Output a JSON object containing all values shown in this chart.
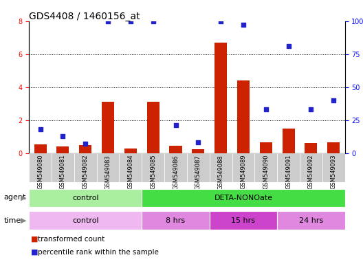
{
  "title": "GDS4408 / 1460156_at",
  "samples": [
    "GSM549080",
    "GSM549081",
    "GSM549082",
    "GSM549083",
    "GSM549084",
    "GSM549085",
    "GSM549086",
    "GSM549087",
    "GSM549088",
    "GSM549089",
    "GSM549090",
    "GSM549091",
    "GSM549092",
    "GSM549093"
  ],
  "transformed_count": [
    0.55,
    0.4,
    0.5,
    3.1,
    0.3,
    3.1,
    0.45,
    0.25,
    6.7,
    4.4,
    0.65,
    1.5,
    0.6,
    0.65
  ],
  "percentile_rank_pct": [
    18,
    13,
    7,
    100,
    100,
    100,
    21,
    8,
    100,
    97,
    33,
    81,
    33,
    40
  ],
  "bar_color": "#cc2200",
  "dot_color": "#2222cc",
  "ylim_left": [
    0,
    8
  ],
  "ylim_right": [
    0,
    100
  ],
  "yticks_left": [
    0,
    2,
    4,
    6,
    8
  ],
  "ytick_labels_left": [
    "0",
    "2",
    "4",
    "6",
    "8"
  ],
  "yticks_right": [
    0,
    25,
    50,
    75,
    100
  ],
  "ytick_labels_right": [
    "0",
    "25",
    "50",
    "75",
    "100%"
  ],
  "agent_groups": [
    {
      "label": "control",
      "start": 0,
      "end": 5,
      "color": "#aaeea0"
    },
    {
      "label": "DETA-NONOate",
      "start": 5,
      "end": 14,
      "color": "#44dd44"
    }
  ],
  "time_groups": [
    {
      "label": "control",
      "start": 0,
      "end": 5,
      "color": "#f0b8f0"
    },
    {
      "label": "8 hrs",
      "start": 5,
      "end": 8,
      "color": "#e088e0"
    },
    {
      "label": "15 hrs",
      "start": 8,
      "end": 11,
      "color": "#cc44cc"
    },
    {
      "label": "24 hrs",
      "start": 11,
      "end": 14,
      "color": "#e088e0"
    }
  ],
  "legend_items": [
    {
      "label": "transformed count",
      "color": "#cc2200"
    },
    {
      "label": "percentile rank within the sample",
      "color": "#2222cc"
    }
  ],
  "title_fontsize": 10,
  "tick_fontsize": 7,
  "sample_fontsize": 6,
  "annot_fontsize": 8
}
